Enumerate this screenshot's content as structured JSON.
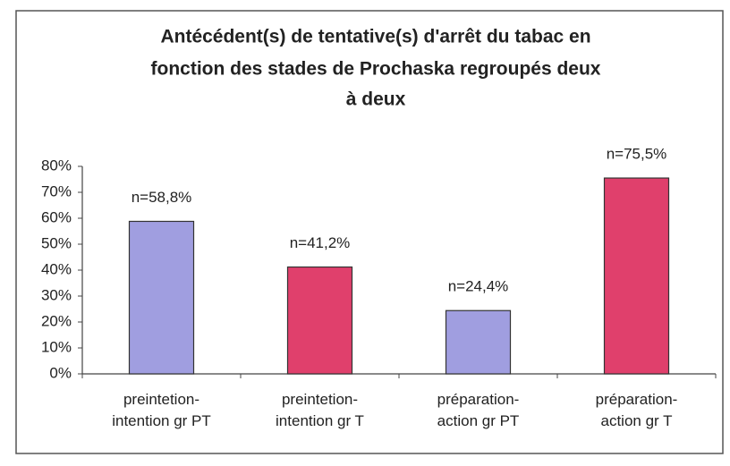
{
  "chart_data": {
    "type": "bar",
    "title": [
      "Antécédent(s) de tentative(s) d'arrêt du tabac en",
      "fonction des stades de Prochaska regroupés deux",
      "à deux"
    ],
    "categories": [
      "preintetion-\nintention gr PT",
      "preintetion-\nintention gr T",
      "préparation-\naction gr PT",
      "préparation-\naction gr T"
    ],
    "values": [
      58.8,
      41.2,
      24.4,
      75.5
    ],
    "value_labels": [
      "n=58,8%",
      "n=41,2%",
      "n=24,4%",
      "n=75,5%"
    ],
    "colors": [
      "#a09ee0",
      "#e0406c",
      "#a09ee0",
      "#e0406c"
    ],
    "ylim": [
      0,
      80
    ],
    "yticks": [
      {
        "value": 0,
        "label": "0%"
      },
      {
        "value": 10,
        "label": "10%"
      },
      {
        "value": 20,
        "label": "20%"
      },
      {
        "value": 30,
        "label": "30%"
      },
      {
        "value": 40,
        "label": "40%"
      },
      {
        "value": 50,
        "label": "50%"
      },
      {
        "value": 60,
        "label": "60%"
      },
      {
        "value": 70,
        "label": "70%"
      },
      {
        "value": 80,
        "label": "80%"
      }
    ],
    "grid": false
  }
}
